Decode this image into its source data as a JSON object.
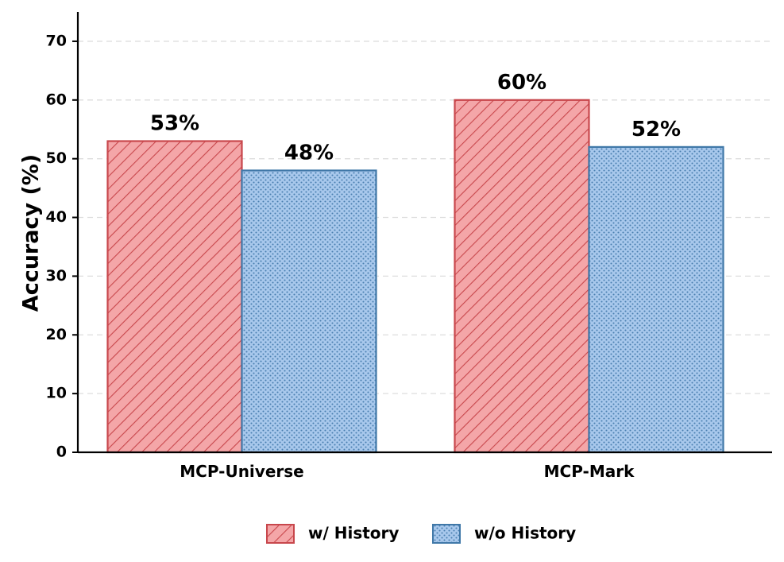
{
  "chart_data": {
    "type": "bar",
    "title": "",
    "xlabel": "",
    "ylabel": "Accuracy (%)",
    "ylim": [
      0,
      75
    ],
    "yticks": [
      0,
      10,
      20,
      30,
      40,
      50,
      60,
      70
    ],
    "grid": true,
    "legend_position": "bottom-center",
    "categories": [
      "MCP-Universe",
      "MCP-Mark"
    ],
    "series": [
      {
        "name": "w/ History",
        "values": [
          53,
          60
        ],
        "labels": [
          "53%",
          "60%"
        ],
        "color": "#f4a6a8",
        "edge_color": "#c8474c",
        "pattern": "diagonal-hatch"
      },
      {
        "name": "w/o History",
        "values": [
          48,
          52
        ],
        "labels": [
          "48%",
          "52%"
        ],
        "color": "#a8c8ec",
        "edge_color": "#4078a8",
        "pattern": "dots"
      }
    ]
  }
}
